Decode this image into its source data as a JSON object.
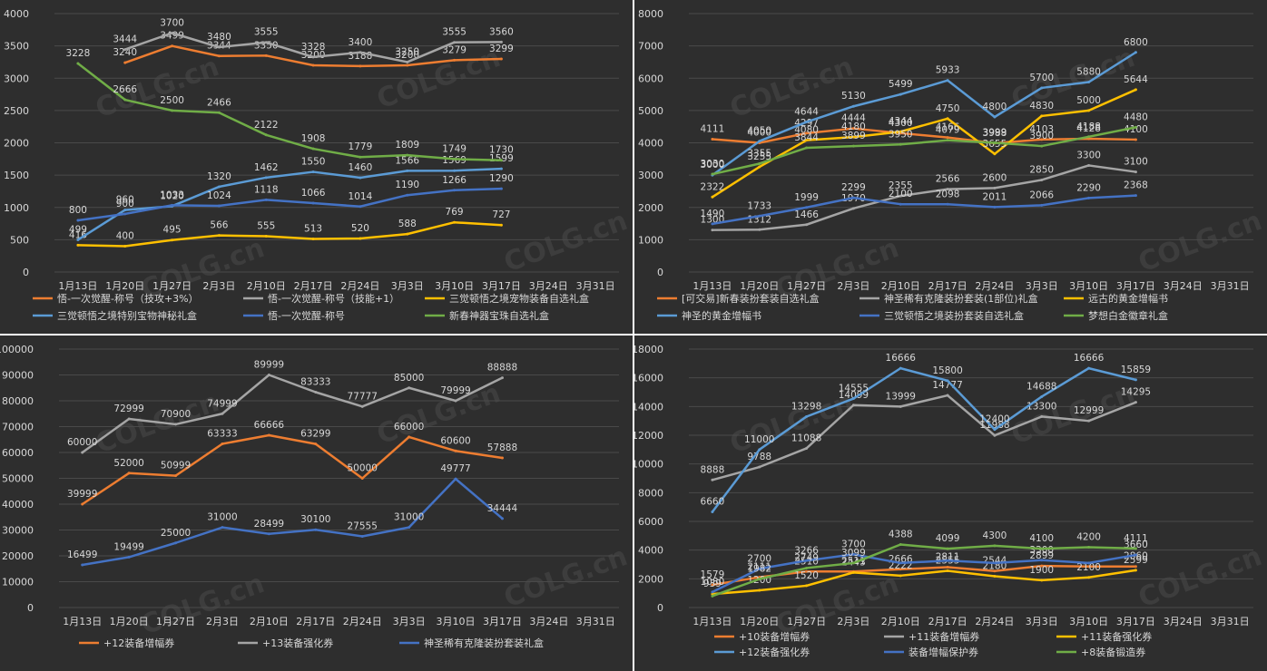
{
  "colors": {
    "background": "#2e2e2e",
    "grid": "#4a4a4a",
    "text": "#d8d8d8",
    "orange": "#ed7d31",
    "gray": "#a5a5a5",
    "yellow": "#ffc000",
    "lightblue": "#5b9bd5",
    "blue": "#4472c4",
    "green": "#70ad47"
  },
  "watermark": "COLG.cn",
  "chart_data": [
    {
      "type": "line",
      "categories": [
        "1月13日",
        "1月20日",
        "1月27日",
        "2月3日",
        "2月10日",
        "2月17日",
        "2月24日",
        "3月3日",
        "3月10日",
        "3月17日",
        "3月24日",
        "3月31日"
      ],
      "ylim": [
        0,
        4000
      ],
      "yticks": [
        0,
        500,
        1000,
        1500,
        2000,
        2500,
        3000,
        3500,
        4000
      ],
      "legend_position": "bottom",
      "series": [
        {
          "name": "悟-一次觉醒-称号（技攻+3%）",
          "color": "#ed7d31",
          "values": [
            null,
            3240,
            3499,
            3344,
            3350,
            3200,
            3188,
            3200,
            3279,
            3299,
            null,
            null
          ],
          "labels": [
            "",
            "3240",
            "3499",
            "3344",
            "3350",
            "3200",
            "3188",
            "3200",
            "3279",
            "3299",
            "",
            ""
          ]
        },
        {
          "name": "悟-一次觉醒-称号（技能+1）",
          "color": "#a5a5a5",
          "values": [
            null,
            3444,
            3700,
            3480,
            3555,
            3328,
            3400,
            3250,
            3555,
            3560,
            null,
            null
          ],
          "labels": [
            "",
            "3444",
            "3700",
            "3480",
            "3555",
            "3328",
            "3400",
            "3250",
            "3555",
            "3560",
            "",
            ""
          ]
        },
        {
          "name": "三觉顿悟之境宠物装备自选礼盒",
          "color": "#ffc000",
          "values": [
            416,
            400,
            495,
            566,
            555,
            513,
            520,
            588,
            769,
            727,
            null,
            null
          ],
          "labels": [
            "416",
            "400",
            "495",
            "566",
            "555",
            "513",
            "520",
            "588",
            "769",
            "727",
            "",
            ""
          ]
        },
        {
          "name": "三觉顿悟之境特别宝物神秘礼盒",
          "color": "#5b9bd5",
          "values": [
            499,
            960,
            1020,
            1320,
            1462,
            1550,
            1460,
            1566,
            1569,
            1599,
            null,
            null
          ],
          "labels": [
            "499",
            "960",
            "1020",
            "1320",
            "1462",
            "1550",
            "1460",
            "1566",
            "1569",
            "1599",
            "",
            ""
          ]
        },
        {
          "name": "悟-一次觉醒-称号",
          "color": "#4472c4",
          "values": [
            800,
            900,
            1033,
            1024,
            1118,
            1066,
            1014,
            1190,
            1266,
            1290,
            null,
            null
          ],
          "labels": [
            "800",
            "900",
            "1033",
            "1024",
            "1118",
            "1066",
            "1014",
            "1190",
            "1266",
            "1290",
            "",
            ""
          ]
        },
        {
          "name": "新春神器宝珠自选礼盒",
          "color": "#70ad47",
          "values": [
            3228,
            2666,
            2500,
            2466,
            2122,
            1908,
            1779,
            1809,
            1749,
            1730,
            null,
            null
          ],
          "labels": [
            "3228",
            "2666",
            "2500",
            "2466",
            "2122",
            "1908",
            "1779",
            "1809",
            "1749",
            "1730",
            "",
            ""
          ]
        }
      ]
    },
    {
      "type": "line",
      "categories": [
        "1月13日",
        "1月20日",
        "1月27日",
        "2月3日",
        "2月10日",
        "2月17日",
        "2月24日",
        "3月3日",
        "3月10日",
        "3月17日",
        "3月24日",
        "3月31日"
      ],
      "ylim": [
        0,
        8000
      ],
      "yticks": [
        0,
        1000,
        2000,
        3000,
        4000,
        5000,
        6000,
        7000,
        8000
      ],
      "legend_position": "bottom",
      "series": [
        {
          "name": "[可交易]新春装扮套装自选礼盒",
          "color": "#ed7d31",
          "values": [
            4111,
            4000,
            4297,
            4444,
            4300,
            4166,
            3988,
            4103,
            4128,
            4100,
            null,
            null
          ],
          "labels": [
            "4111",
            "4000",
            "4297",
            "4444",
            "4300",
            "4166",
            "3988",
            "4103",
            "4128",
            "4100",
            "",
            ""
          ]
        },
        {
          "name": "神圣稀有克隆装扮套装(1部位)礼盒",
          "color": "#a5a5a5",
          "values": [
            1300,
            1312,
            1466,
            1970,
            2355,
            2566,
            2600,
            2850,
            3300,
            3100,
            null,
            null
          ],
          "labels": [
            "1300",
            "1312",
            "1466",
            "1970",
            "2355",
            "2566",
            "2600",
            "2850",
            "3300",
            "3100",
            "",
            ""
          ]
        },
        {
          "name": "远古的黄金增幅书",
          "color": "#ffc000",
          "values": [
            2322,
            3255,
            4080,
            4180,
            4344,
            4750,
            3655,
            4830,
            5000,
            5644,
            null,
            null
          ],
          "labels": [
            "2322",
            "3255",
            "4080",
            "4180",
            "4344",
            "4750",
            "3655",
            "4830",
            "5000",
            "5644",
            "",
            ""
          ]
        },
        {
          "name": "神圣的黄金增幅书",
          "color": "#5b9bd5",
          "values": [
            3000,
            4050,
            4644,
            5130,
            5499,
            5933,
            4800,
            5700,
            5880,
            6800,
            null,
            null
          ],
          "labels": [
            "3000",
            "4050",
            "4644",
            "5130",
            "5499",
            "5933",
            "4800",
            "5700",
            "5880",
            "6800",
            "",
            ""
          ]
        },
        {
          "name": "三觉顿悟之境装扮套装自选礼盒",
          "color": "#4472c4",
          "values": [
            1490,
            1733,
            1999,
            2299,
            2100,
            2098,
            2011,
            2066,
            2290,
            2368,
            null,
            null
          ],
          "labels": [
            "1490",
            "1733",
            "1999",
            "2299",
            "2100",
            "2098",
            "2011",
            "2066",
            "2290",
            "2368",
            "",
            ""
          ]
        },
        {
          "name": "梦想白金徽章礼盒",
          "color": "#70ad47",
          "values": [
            3030,
            3355,
            3844,
            3899,
            3950,
            4079,
            3999,
            3900,
            4188,
            4480,
            null,
            null
          ],
          "labels": [
            "3030",
            "3355",
            "3844",
            "3899",
            "3950",
            "4079",
            "3999",
            "3900",
            "4188",
            "4480",
            "",
            ""
          ]
        }
      ]
    },
    {
      "type": "line",
      "categories": [
        "1月13日",
        "1月20日",
        "1月27日",
        "2月3日",
        "2月10日",
        "2月17日",
        "2月24日",
        "3月3日",
        "3月10日",
        "3月17日",
        "3月24日",
        "3月31日"
      ],
      "ylim": [
        0,
        100000
      ],
      "yticks": [
        0,
        10000,
        20000,
        30000,
        40000,
        50000,
        60000,
        70000,
        80000,
        90000,
        100000
      ],
      "legend_position": "bottom",
      "series": [
        {
          "name": "+12装备增幅券",
          "color": "#ed7d31",
          "values": [
            39999,
            52000,
            50999,
            63333,
            66666,
            63299,
            50000,
            66000,
            60600,
            57888,
            null,
            null
          ],
          "labels": [
            "39999",
            "52000",
            "50999",
            "63333",
            "66666",
            "63299",
            "50000",
            "66000",
            "60600",
            "57888",
            "",
            ""
          ]
        },
        {
          "name": "+13装备强化券",
          "color": "#a5a5a5",
          "values": [
            60000,
            72999,
            70900,
            74999,
            89999,
            83333,
            77777,
            85000,
            79999,
            88888,
            null,
            null
          ],
          "labels": [
            "60000",
            "72999",
            "70900",
            "74999",
            "89999",
            "83333",
            "77777",
            "85000",
            "79999",
            "88888",
            "",
            ""
          ]
        },
        {
          "name": "神圣稀有克隆装扮套装礼盒",
          "color": "#4472c4",
          "values": [
            16499,
            19499,
            25000,
            31000,
            28499,
            30100,
            27555,
            31000,
            49777,
            34444,
            null,
            null
          ],
          "labels": [
            "16499",
            "19499",
            "25000",
            "31000",
            "28499",
            "30100",
            "27555",
            "31000",
            "49777",
            "34444",
            "",
            ""
          ]
        }
      ]
    },
    {
      "type": "line",
      "categories": [
        "1月13日",
        "1月20日",
        "1月27日",
        "2月3日",
        "2月10日",
        "2月17日",
        "2月24日",
        "3月3日",
        "3月10日",
        "3月17日",
        "3月24日",
        "3月31日"
      ],
      "ylim": [
        0,
        18000
      ],
      "yticks": [
        0,
        2000,
        4000,
        6000,
        8000,
        10000,
        12000,
        14000,
        16000,
        18000
      ],
      "legend_position": "bottom",
      "series": [
        {
          "name": "+10装备增幅券",
          "color": "#ed7d31",
          "values": [
            1579,
            2111,
            2510,
            2511,
            2666,
            2811,
            2544,
            2899,
            2860,
            2860,
            null,
            null
          ],
          "labels": [
            "1579",
            "2111",
            "2510",
            "2511",
            "2666",
            "2811",
            "2544",
            "2899",
            "",
            "2860",
            "",
            ""
          ]
        },
        {
          "name": "+11装备增幅券",
          "color": "#a5a5a5",
          "values": [
            8888,
            9788,
            11088,
            14099,
            13999,
            14777,
            11988,
            13300,
            12999,
            14295,
            null,
            null
          ],
          "labels": [
            "8888",
            "9788",
            "11088",
            "14099",
            "13999",
            "14777",
            "11988",
            "13300",
            "12999",
            "14295",
            "",
            ""
          ]
        },
        {
          "name": "+11装备强化券",
          "color": "#ffc000",
          "values": [
            939,
            1200,
            1520,
            2443,
            2222,
            2555,
            2180,
            1900,
            2100,
            2599,
            null,
            null
          ],
          "labels": [
            "939",
            "1200",
            "1520",
            "2443",
            "2222",
            "2555",
            "2180",
            "1900",
            "2100",
            "2599",
            "",
            ""
          ]
        },
        {
          "name": "+12装备强化券",
          "color": "#5b9bd5",
          "values": [
            6660,
            11000,
            13298,
            14555,
            16666,
            15800,
            12400,
            14688,
            16666,
            15859,
            null,
            null
          ],
          "labels": [
            "6660",
            "11000",
            "13298",
            "14555",
            "16666",
            "15800",
            "12400",
            "14688",
            "16666",
            "15859",
            "",
            ""
          ]
        },
        {
          "name": "装备增幅保护券",
          "color": "#4472c4",
          "values": [
            1080,
            2700,
            3266,
            3700,
            3099,
            3266,
            3099,
            3300,
            3100,
            3660,
            null,
            null
          ],
          "labels": [
            "1080",
            "2700",
            "3266",
            "3700",
            "",
            "",
            "",
            "3300",
            "",
            "3660",
            "",
            ""
          ]
        },
        {
          "name": "+8装备锻造券",
          "color": "#70ad47",
          "values": [
            800,
            1982,
            2749,
            3099,
            4388,
            4099,
            4300,
            4100,
            4200,
            4111,
            null,
            null
          ],
          "labels": [
            "",
            "1982",
            "2749",
            "3099",
            "4388",
            "4099",
            "4300",
            "4100",
            "4200",
            "4111",
            "",
            ""
          ]
        }
      ]
    }
  ]
}
